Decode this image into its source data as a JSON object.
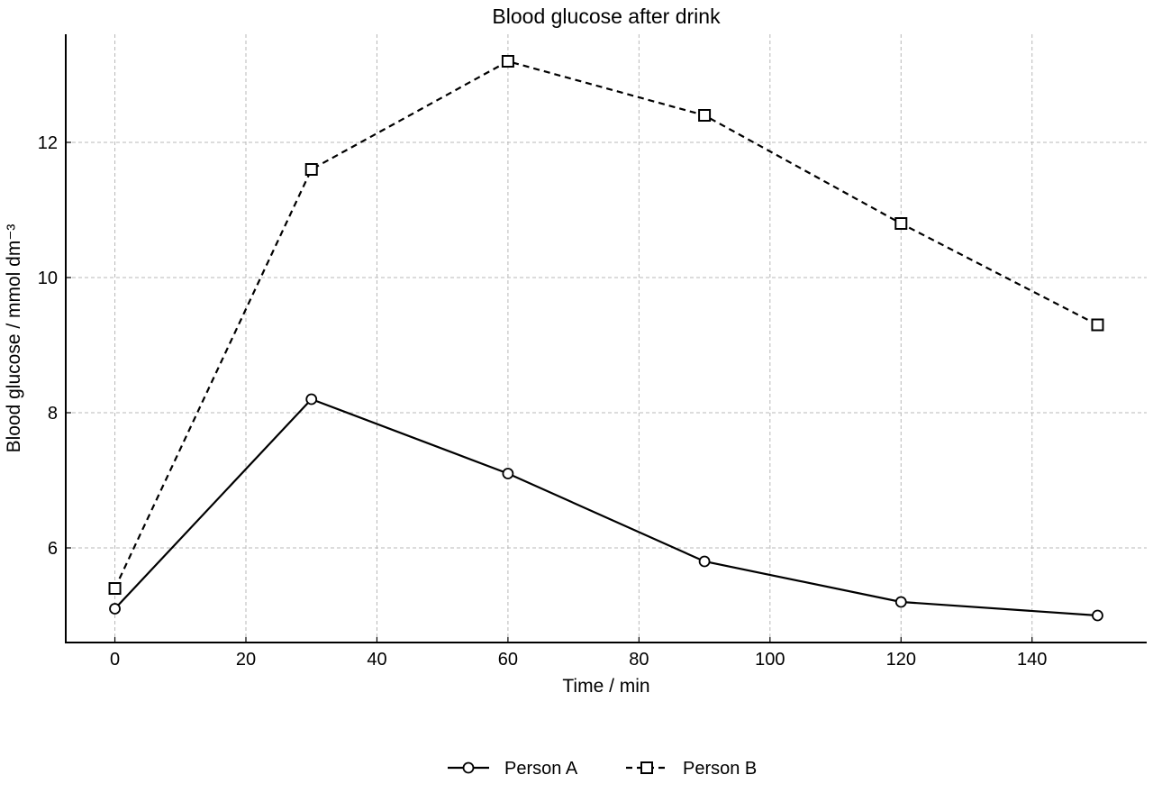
{
  "chart_data": {
    "type": "line",
    "title": "Blood glucose after drink",
    "xlabel": "Time / min",
    "ylabel": "Blood glucose / mmol dm⁻³",
    "x": [
      0,
      30,
      60,
      90,
      120,
      150
    ],
    "xlim": [
      -7.5,
      157.5
    ],
    "ylim": [
      4.6,
      13.6
    ],
    "xticks": [
      0,
      20,
      40,
      60,
      80,
      100,
      120,
      140
    ],
    "yticks": [
      6,
      8,
      10,
      12
    ],
    "grid": true,
    "legend_position": "bottom-center",
    "series": [
      {
        "name": "Person A",
        "marker": "circle",
        "line_style": "solid",
        "color": "#000000",
        "values": [
          5.1,
          8.2,
          7.1,
          5.8,
          5.2,
          5.0
        ]
      },
      {
        "name": "Person B",
        "marker": "square",
        "line_style": "dashed",
        "color": "#000000",
        "values": [
          5.4,
          11.6,
          13.2,
          12.4,
          10.8,
          9.3
        ]
      }
    ]
  }
}
